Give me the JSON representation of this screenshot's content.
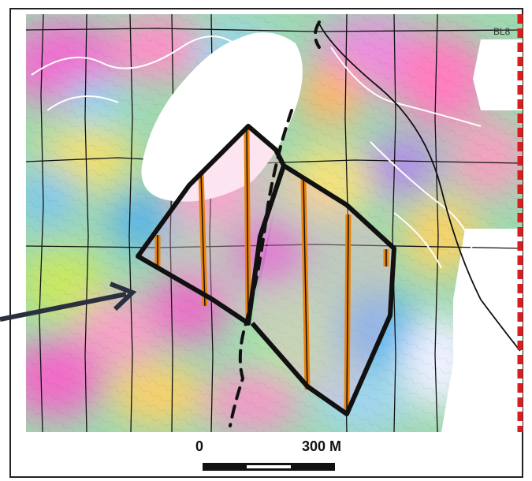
{
  "map": {
    "line_label": "BL8",
    "scale_bar": {
      "start_label": "0",
      "end_label": "300 M"
    },
    "colors": {
      "outline": "#111111",
      "stripe": "#e8820c",
      "section_line": "#111111",
      "baseline_red": "#d81e1e",
      "road": "#ffffff",
      "mask": "#ffffff"
    }
  }
}
